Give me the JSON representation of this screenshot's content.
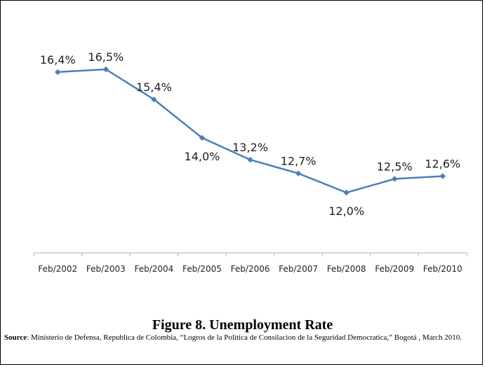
{
  "chart_data": {
    "type": "line",
    "categories": [
      "Feb/2002",
      "Feb/2003",
      "Feb/2004",
      "Feb/2005",
      "Feb/2006",
      "Feb/2007",
      "Feb/2008",
      "Feb/2009",
      "Feb/2010"
    ],
    "values": [
      16.4,
      16.5,
      15.4,
      14.0,
      13.2,
      12.7,
      12.0,
      12.5,
      12.6
    ],
    "data_labels": [
      "16,4%",
      "16,5%",
      "15,4%",
      "14,0%",
      "13,2%",
      "12,7%",
      "12,0%",
      "12,5%",
      "12,6%"
    ],
    "ylim": [
      9.8,
      17.6
    ],
    "grid": false,
    "line_color": "#4a7ebb",
    "marker": "diamond"
  },
  "caption": "Figure 8.  Unemployment Rate",
  "source": {
    "label": "Source",
    "text": ": Ministerio de Defensa, Republica de Colombia, “Logros de la Politica de Consilacion de la Seguridad Democratica,” Bogotá , March 2010."
  }
}
